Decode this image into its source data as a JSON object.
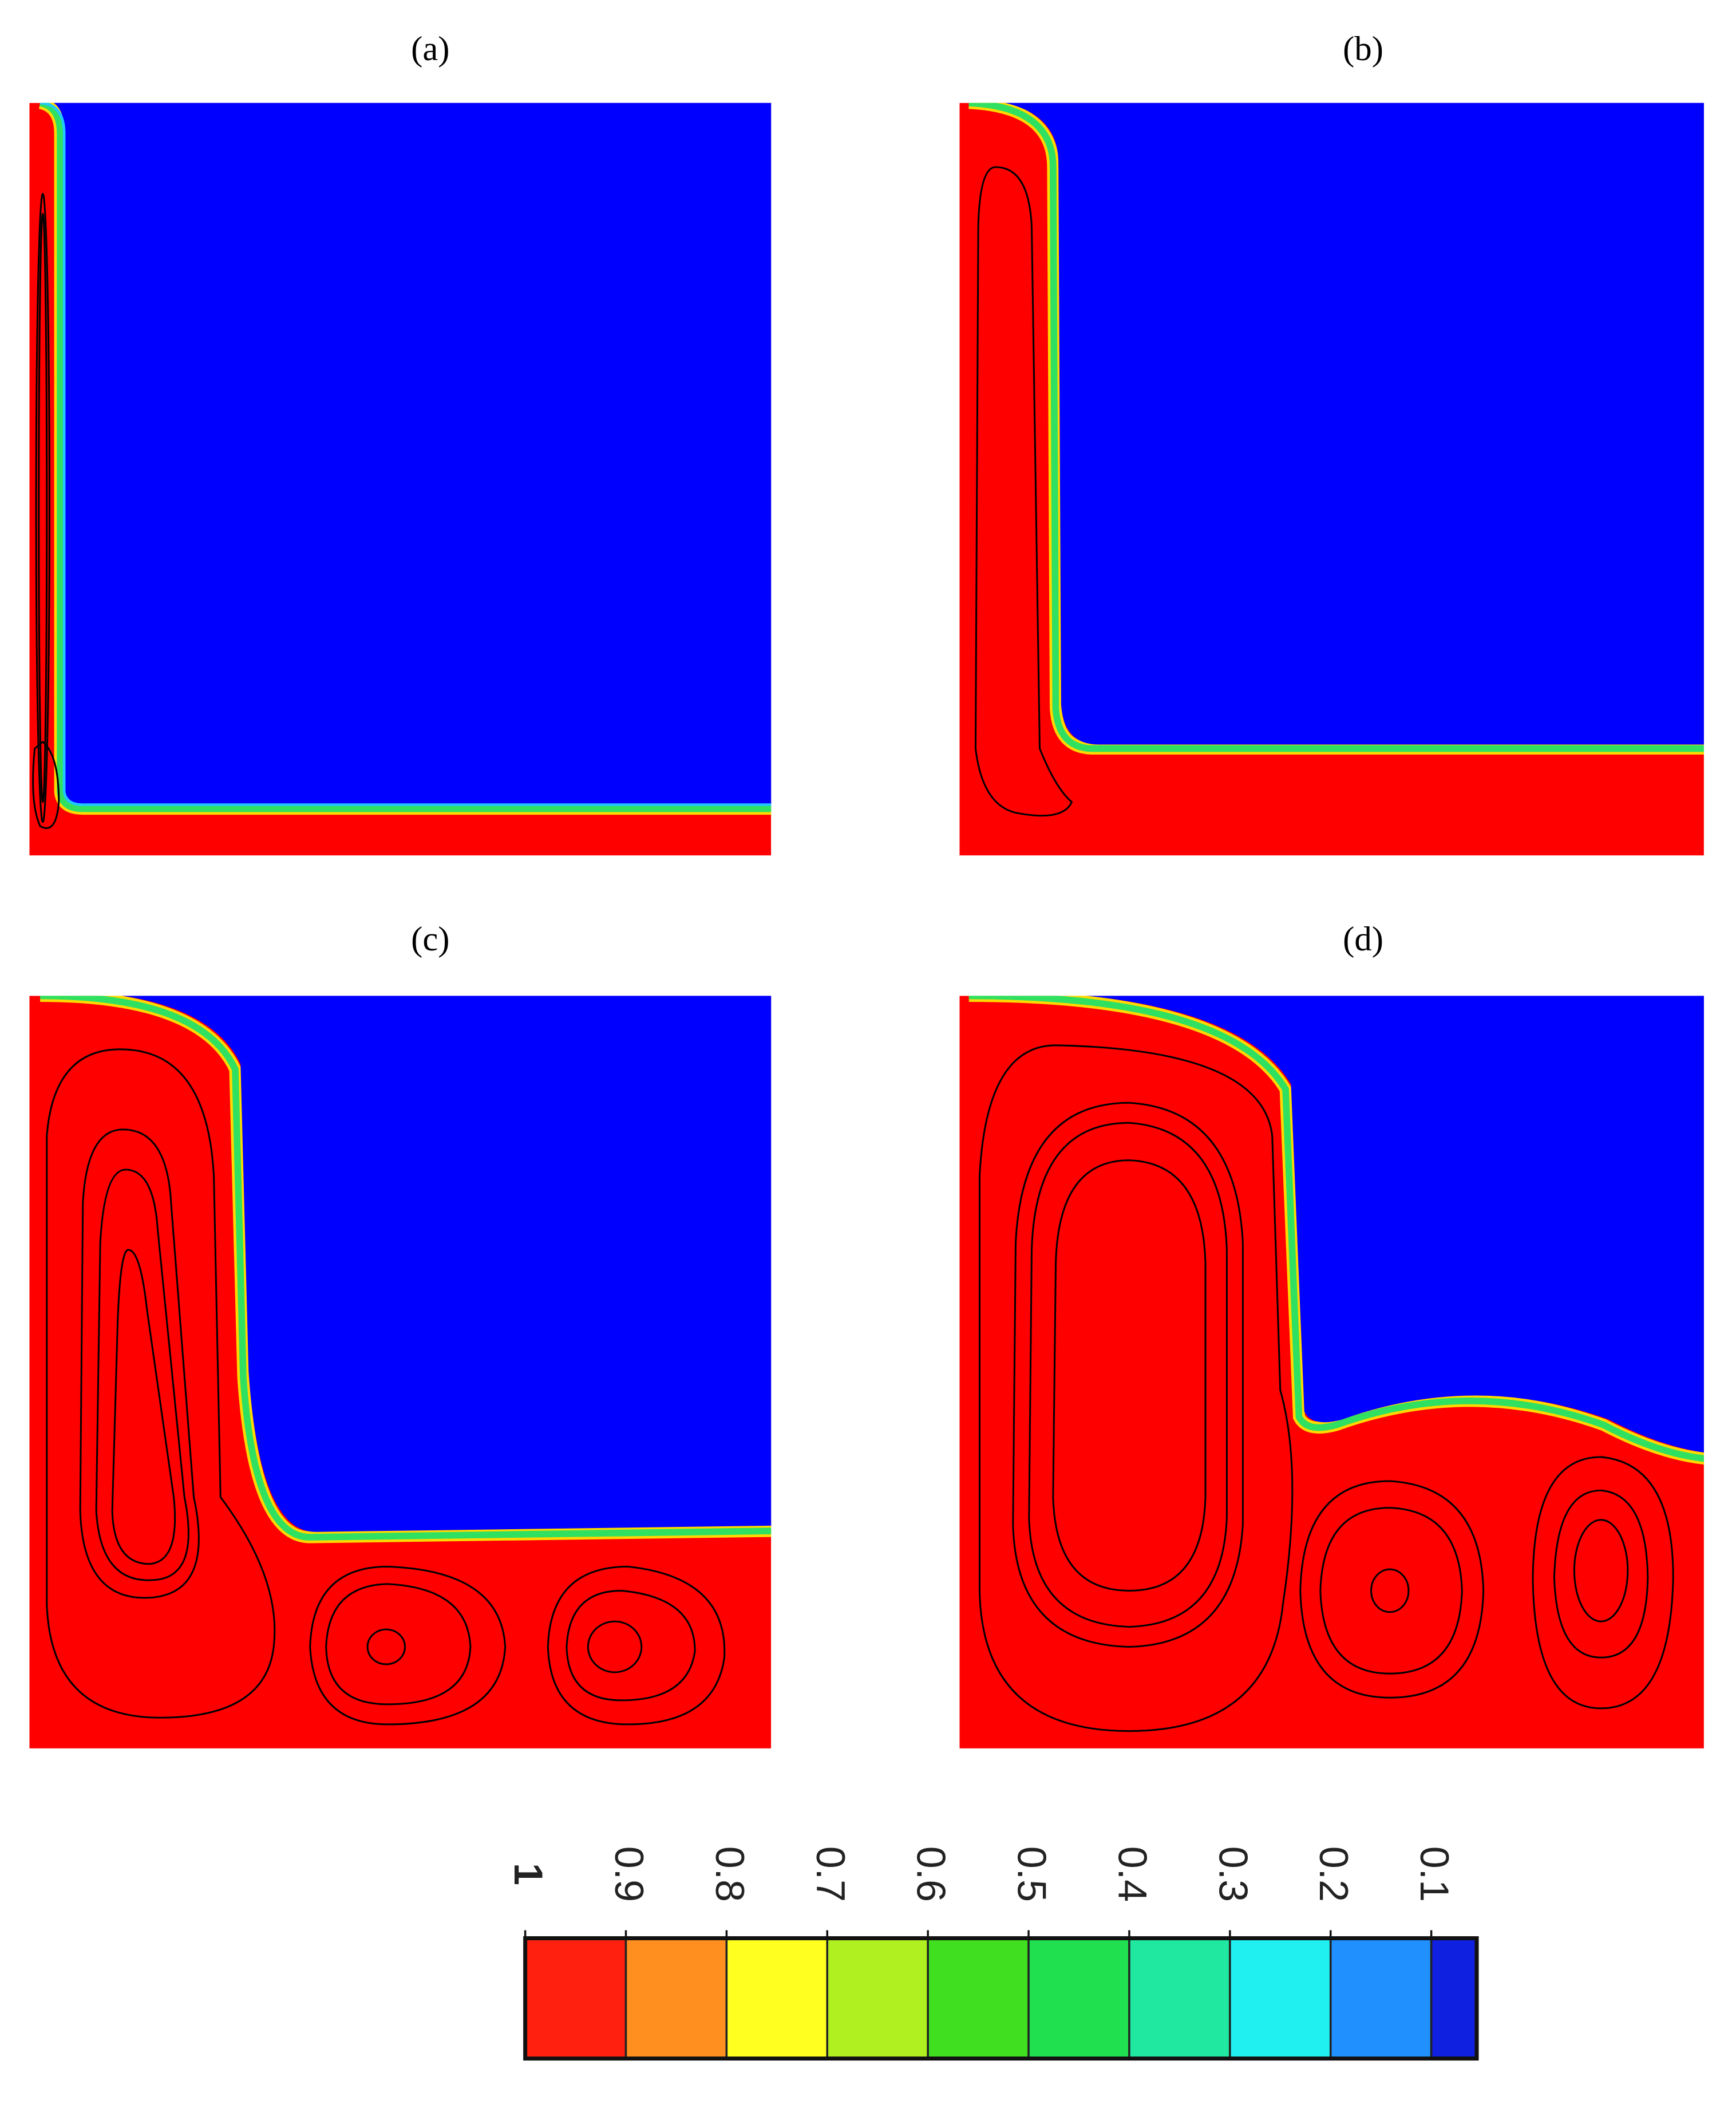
{
  "panels": [
    {
      "label": "(a)"
    },
    {
      "label": "(b)"
    },
    {
      "label": "(c)"
    },
    {
      "label": "(d)"
    }
  ],
  "colorbar": {
    "ticks": [
      1,
      0.9,
      0.8,
      0.7,
      0.6,
      0.5,
      0.4,
      0.3,
      0.2,
      0.1
    ],
    "colors": [
      "#ff2010",
      "#ff9020",
      "#ffff20",
      "#b0f020",
      "#40e020",
      "#20e050",
      "#20e8a0",
      "#20f0f0",
      "#2090ff",
      "#1020e0"
    ]
  }
}
